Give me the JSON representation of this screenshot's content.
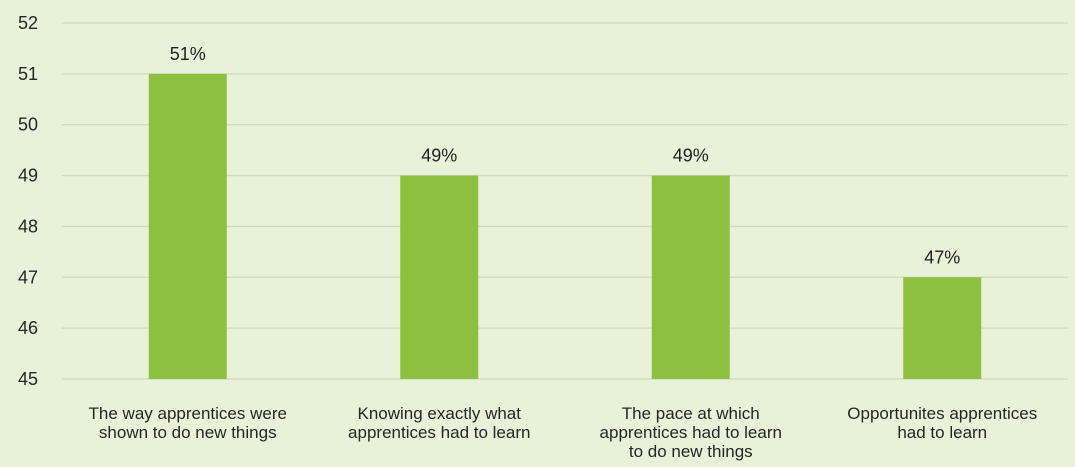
{
  "chart_data": {
    "type": "bar",
    "categories": [
      "The way apprentices were shown to do new things",
      "Knowing exactly what apprentices had to learn",
      "The pace at which apprentices had to learn to do new things",
      "Opportunites apprentices had to learn"
    ],
    "category_lines": [
      [
        "The way apprentices were",
        "shown to do new things"
      ],
      [
        "Knowing exactly what",
        "apprentices had to learn"
      ],
      [
        "The pace at which",
        "apprentices had to learn",
        "to do new things"
      ],
      [
        "Opportunites apprentices",
        "had to learn"
      ]
    ],
    "values": [
      51,
      49,
      49,
      47
    ],
    "data_labels": [
      "51%",
      "49%",
      "49%",
      "47%"
    ],
    "yticks": [
      45,
      46,
      47,
      48,
      49,
      50,
      51,
      52
    ],
    "ylim": [
      45,
      52
    ],
    "title": "",
    "xlabel": "",
    "ylabel": "",
    "grid": true,
    "legend": "none",
    "colors": {
      "background": "#e8f2d9",
      "bar": "#8dc03f",
      "grid": "#cfd9c0",
      "axis_text": "#262626"
    }
  }
}
